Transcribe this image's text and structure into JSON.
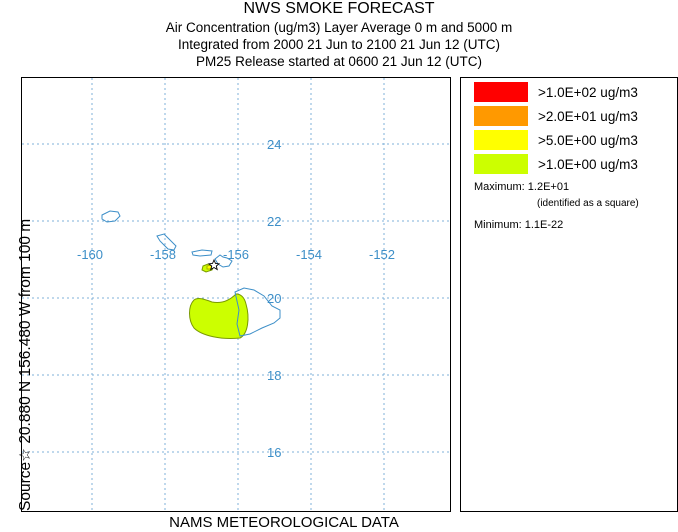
{
  "header": {
    "title": "NWS SMOKE FORECAST",
    "line1": "Air Concentration (ug/m3) Layer Average    0 m and  5000 m",
    "line2": "Integrated from 2000 21 Jun to 2100 21 Jun 12 (UTC)",
    "line3": "PM25 Release started at 0600 21 Jun 12 (UTC)"
  },
  "map": {
    "lon_labels": [
      "-160",
      "-158",
      "-156",
      "-154",
      "-152"
    ],
    "lat_labels": [
      "24",
      "22",
      "20",
      "18",
      "16"
    ],
    "gridline_color": "#7fb0d8",
    "label_color": "#3d8fc8",
    "coastline_color": "#3d8fc8",
    "source_marker": "star-icon"
  },
  "legend": {
    "items": [
      {
        "color": "#ff0000",
        "label": ">1.0E+02 ug/m3"
      },
      {
        "color": "#ff9900",
        "label": ">2.0E+01 ug/m3"
      },
      {
        "color": "#ffff00",
        "label": ">5.0E+00 ug/m3"
      },
      {
        "color": "#ccff00",
        "label": ">1.0E+00 ug/m3"
      }
    ],
    "maximum": "Maximum: 1.2E+01",
    "maximum_note": "(identified as a square)",
    "minimum": "Minimum: 1.1E-22"
  },
  "side_label": "Source☆ 20.880  N 156.480  W    from   100 m",
  "bottom_label": "NAMS METEOROLOGICAL DATA"
}
